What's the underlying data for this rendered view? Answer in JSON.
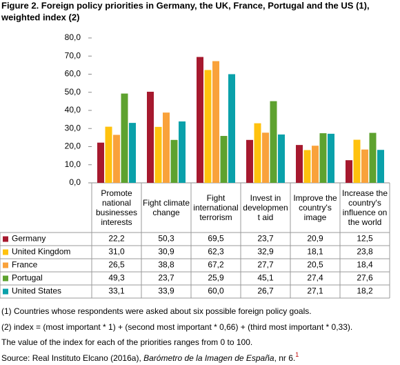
{
  "chart_data": {
    "type": "bar",
    "title": [
      "Figure 2. Foreign policy priorities in Germany, the UK, France, Portugal and the US (1),",
      "weighted index (2)"
    ],
    "categories": [
      "Promote national businesses interests",
      "Fight climate change",
      "Fight international terrorism",
      "Invest in developmen t aid",
      "Improve the country's image",
      "Increase the country's influence on the world"
    ],
    "series": [
      {
        "name": "Germany",
        "color": "#a6192e",
        "values": [
          22.2,
          50.3,
          69.5,
          23.7,
          20.9,
          12.5
        ],
        "value_labels": [
          "22,2",
          "50,3",
          "69,5",
          "23,7",
          "20,9",
          "12,5"
        ]
      },
      {
        "name": "United Kingdom",
        "color": "#ffc20e",
        "values": [
          31.0,
          30.9,
          62.3,
          32.9,
          18.1,
          23.8
        ],
        "value_labels": [
          "31,0",
          "30,9",
          "62,3",
          "32,9",
          "18,1",
          "23,8"
        ]
      },
      {
        "name": "France",
        "color": "#f9a23b",
        "values": [
          26.5,
          38.8,
          67.2,
          27.7,
          20.5,
          18.4
        ],
        "value_labels": [
          "26,5",
          "38,8",
          "67,2",
          "27,7",
          "20,5",
          "18,4"
        ]
      },
      {
        "name": "Portugal",
        "color": "#5ea22f",
        "values": [
          49.3,
          23.7,
          25.9,
          45.1,
          27.4,
          27.6
        ],
        "value_labels": [
          "49,3",
          "23,7",
          "25,9",
          "45,1",
          "27,4",
          "27,6"
        ]
      },
      {
        "name": "United States",
        "color": "#0aa1aa",
        "values": [
          33.1,
          33.9,
          60.0,
          26.7,
          27.1,
          18.2
        ],
        "value_labels": [
          "33,1",
          "33,9",
          "60,0",
          "26,7",
          "27,1",
          "18,2"
        ]
      }
    ],
    "ylim": [
      0,
      80
    ],
    "yticks": [
      {
        "value": 0,
        "label": "0,0"
      },
      {
        "value": 10,
        "label": "10,0"
      },
      {
        "value": 20,
        "label": "20,0"
      },
      {
        "value": 30,
        "label": "30,0"
      },
      {
        "value": 40,
        "label": "40,0"
      },
      {
        "value": 50,
        "label": "50,0"
      },
      {
        "value": 60,
        "label": "60,0"
      },
      {
        "value": 70,
        "label": "70,0"
      },
      {
        "value": 80,
        "label": "80,0"
      }
    ],
    "notes": [
      "(1) Countries whose respondents were asked about six possible foreign policy goals.",
      "(2) index = (most important * 1) + (second most important * 0,66) + (third most important * 0,33).",
      "The value of the index for each of the priorities ranges from 0 to 100."
    ],
    "source": {
      "text": "Source: Real Instituto Elcano (2016a), ",
      "italic": "Barómetro de la Imagen de España",
      "tail": ", nr 6.",
      "sup": "1"
    }
  }
}
